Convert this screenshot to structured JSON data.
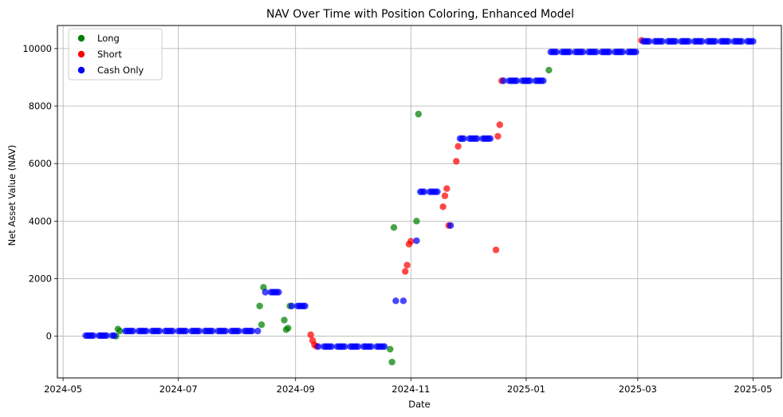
{
  "chart_data": {
    "type": "scatter",
    "title": "NAV Over Time with Position Coloring, Enhanced Model",
    "xlabel": "Date",
    "ylabel": "Net Asset Value (NAV)",
    "xlim": [
      "2024-04-28",
      "2025-05-16"
    ],
    "ylim": [
      -1450,
      10800
    ],
    "grid": true,
    "legend_position": "top-left",
    "x_ticks": [
      "2024-05",
      "2024-07",
      "2024-09",
      "2024-11",
      "2025-01",
      "2025-03",
      "2025-05"
    ],
    "y_ticks": [
      0,
      2000,
      4000,
      6000,
      8000,
      10000
    ],
    "series": [
      {
        "name": "Long",
        "color": "#008000",
        "points": [
          [
            "2024-05-29",
            0
          ],
          [
            "2024-05-30",
            250
          ],
          [
            "2024-05-31",
            180
          ],
          [
            "2024-08-13",
            1050
          ],
          [
            "2024-08-14",
            400
          ],
          [
            "2024-08-15",
            1700
          ],
          [
            "2024-08-26",
            560
          ],
          [
            "2024-08-27",
            230
          ],
          [
            "2024-08-28",
            280
          ],
          [
            "2024-08-29",
            1050
          ],
          [
            "2024-10-21",
            -450
          ],
          [
            "2024-10-22",
            -900
          ],
          [
            "2024-10-23",
            3780
          ],
          [
            "2024-11-04",
            4000
          ],
          [
            "2024-11-05",
            7720
          ],
          [
            "2025-01-13",
            9250
          ]
        ]
      },
      {
        "name": "Short",
        "color": "#ff0000",
        "points": [
          [
            "2024-09-09",
            50
          ],
          [
            "2024-09-10",
            -150
          ],
          [
            "2024-09-11",
            -300
          ],
          [
            "2024-09-12",
            -350
          ],
          [
            "2024-10-29",
            2250
          ],
          [
            "2024-10-30",
            2470
          ],
          [
            "2024-10-31",
            3200
          ],
          [
            "2024-11-01",
            3300
          ],
          [
            "2024-11-18",
            4500
          ],
          [
            "2024-11-19",
            4880
          ],
          [
            "2024-11-20",
            5130
          ],
          [
            "2024-11-21",
            3850
          ],
          [
            "2024-11-25",
            6080
          ],
          [
            "2024-11-26",
            6600
          ],
          [
            "2024-12-16",
            3000
          ],
          [
            "2024-12-17",
            6950
          ],
          [
            "2024-12-18",
            7350
          ],
          [
            "2024-12-19",
            8880
          ],
          [
            "2025-03-03",
            10280
          ]
        ]
      },
      {
        "name": "Cash Only",
        "color": "#0000ff",
        "segments": [
          {
            "start": "2024-05-13",
            "end": "2024-05-28",
            "value": 20,
            "skip_weekends": true
          },
          {
            "start": "2024-06-03",
            "end": "2024-08-12",
            "value": 180,
            "skip_weekends": true
          },
          {
            "start": "2024-08-16",
            "end": "2024-08-23",
            "value": 1530,
            "skip_weekends": true
          },
          {
            "start": "2024-08-30",
            "end": "2024-09-06",
            "value": 1050,
            "skip_weekends": true
          },
          {
            "start": "2024-09-13",
            "end": "2024-10-18",
            "value": -360,
            "skip_weekends": true
          },
          {
            "start": "2024-11-06",
            "end": "2024-11-15",
            "value": 5020,
            "skip_weekends": true
          },
          {
            "start": "2024-11-27",
            "end": "2024-12-13",
            "value": 6870,
            "skip_weekends": true
          },
          {
            "start": "2024-12-20",
            "end": "2025-01-10",
            "value": 8880,
            "skip_weekends": true
          },
          {
            "start": "2025-01-14",
            "end": "2025-02-28",
            "value": 9880,
            "skip_weekends": true
          },
          {
            "start": "2025-03-04",
            "end": "2025-05-01",
            "value": 10250,
            "skip_weekends": true
          }
        ],
        "points": [
          [
            "2024-10-24",
            1230
          ],
          [
            "2024-10-28",
            1230
          ],
          [
            "2024-11-04",
            3320
          ],
          [
            "2024-11-22",
            3850
          ]
        ]
      }
    ]
  }
}
